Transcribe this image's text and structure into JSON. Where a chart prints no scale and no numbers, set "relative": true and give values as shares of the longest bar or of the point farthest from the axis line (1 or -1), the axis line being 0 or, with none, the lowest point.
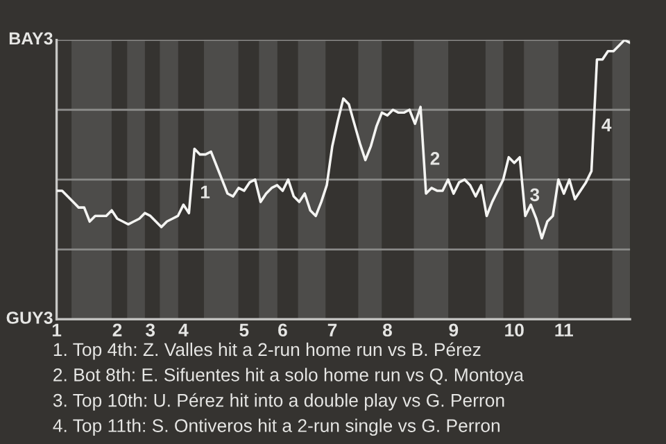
{
  "chart_data": {
    "type": "line",
    "relative": true,
    "categories": [
      "1",
      null,
      null,
      null,
      null,
      null,
      null,
      null,
      null,
      null,
      null,
      "2",
      null,
      null,
      null,
      null,
      null,
      "3",
      null,
      null,
      null,
      null,
      null,
      "4",
      null,
      null,
      null,
      null,
      null,
      null,
      null,
      null,
      null,
      null,
      "5",
      null,
      null,
      null,
      null,
      null,
      null,
      "6",
      null,
      null,
      null,
      null,
      null,
      null,
      null,
      null,
      "7",
      null,
      null,
      null,
      null,
      null,
      null,
      null,
      null,
      null,
      "8",
      null,
      null,
      null,
      null,
      null,
      null,
      null,
      null,
      null,
      null,
      null,
      "9",
      null,
      null,
      null,
      null,
      null,
      null,
      null,
      null,
      null,
      null,
      "10",
      null,
      null,
      null,
      null,
      null,
      null,
      null,
      null,
      "11",
      null,
      null,
      null,
      null,
      null,
      null,
      null,
      null,
      null,
      null,
      null,
      null
    ],
    "series": [
      {
        "color": "#f4f4f2",
        "values": [
          0.46,
          0.46,
          0.44,
          0.42,
          0.4,
          0.4,
          0.35,
          0.37,
          0.37,
          0.37,
          0.39,
          0.36,
          0.35,
          0.34,
          0.35,
          0.36,
          0.38,
          0.37,
          0.35,
          0.33,
          0.35,
          0.36,
          0.37,
          0.41,
          0.38,
          0.61,
          0.59,
          0.59,
          0.6,
          0.55,
          0.5,
          0.45,
          0.44,
          0.47,
          0.46,
          0.49,
          0.5,
          0.42,
          0.45,
          0.47,
          0.48,
          0.46,
          0.5,
          0.44,
          0.42,
          0.45,
          0.39,
          0.37,
          0.42,
          0.48,
          0.62,
          0.71,
          0.79,
          0.77,
          0.7,
          0.63,
          0.57,
          0.62,
          0.69,
          0.74,
          0.73,
          0.75,
          0.74,
          0.74,
          0.75,
          0.7,
          0.76,
          0.45,
          0.47,
          0.46,
          0.46,
          0.5,
          0.45,
          0.49,
          0.5,
          0.48,
          0.44,
          0.48,
          0.37,
          0.42,
          0.46,
          0.5,
          0.58,
          0.56,
          0.58,
          0.37,
          0.41,
          0.36,
          0.29,
          0.35,
          0.37,
          0.5,
          0.45,
          0.5,
          0.43,
          0.46,
          0.49,
          0.53,
          0.93,
          0.93,
          0.96,
          0.96,
          0.98,
          1.0,
          0.99
        ]
      }
    ],
    "grid": "y",
    "marker": "none",
    "line_style": "solid",
    "annotations": [
      "BAY3",
      "GUY3",
      "1",
      "2",
      "3",
      "4",
      "1. Top 4th: Z. Valles hit a 2-run home run vs B. Pérez",
      "2. Bot 8th: E. Sifuentes hit a solo home run vs Q. Montoya",
      "3. Top 10th: U. Pérez hit into a double play vs G. Perron",
      "4. Top 11th: S. Ontiveros hit a 2-run single vs G. Perron"
    ]
  }
}
